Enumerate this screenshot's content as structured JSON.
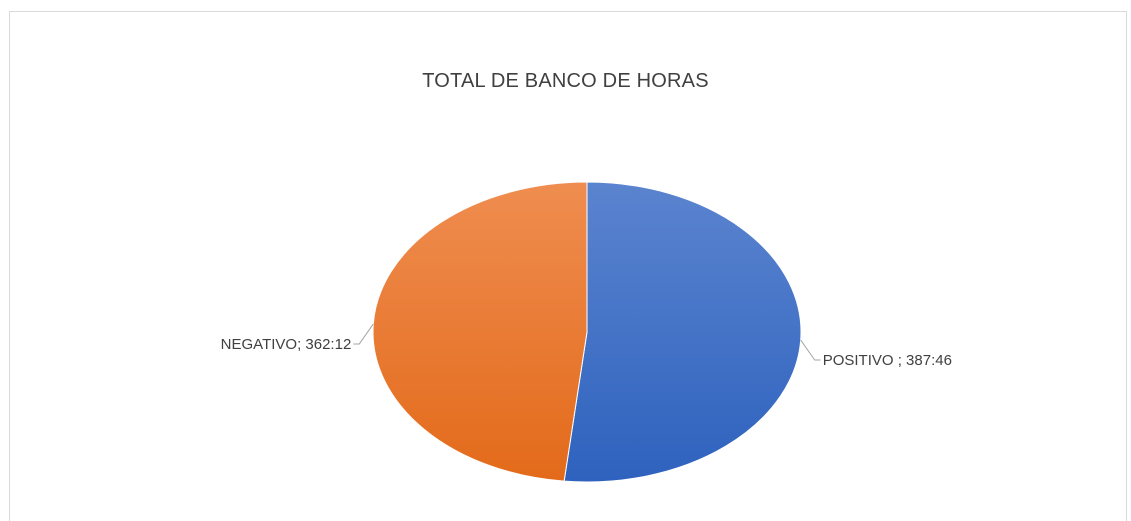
{
  "chart_data": {
    "type": "pie",
    "title": "TOTAL DE BANCO DE HORAS",
    "slices": [
      {
        "name": "POSITIVO",
        "value": 387.77,
        "label": "POSITIVO ; 387:46",
        "color": "#4472C4"
      },
      {
        "name": "NEGATIVO",
        "value": 362.2,
        "label": "NEGATIVO; 362:12",
        "color": "#ED7D31"
      }
    ],
    "legend": "none",
    "start_angle_deg": 0,
    "direction": "clockwise"
  }
}
